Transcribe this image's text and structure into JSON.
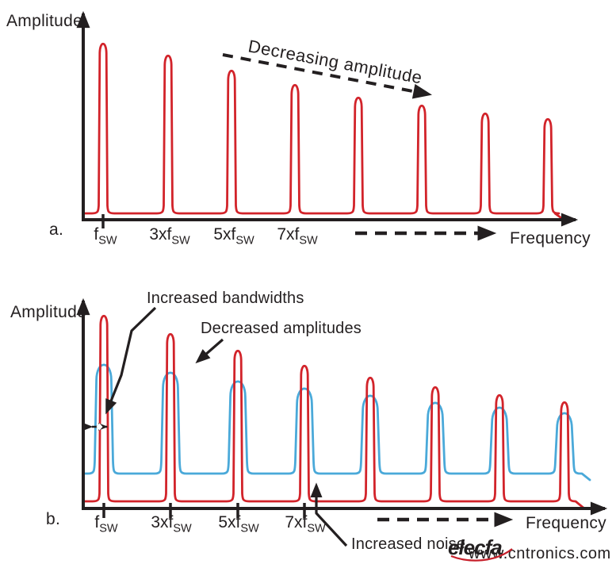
{
  "colors": {
    "red": "#d2232a",
    "blue": "#4aa9d9",
    "ink": "#231f20",
    "watermark_logo_red": "#c7202b",
    "watermark_site_gray": "#b7c3b8"
  },
  "chart_a": {
    "index_label": "a.",
    "y_axis_label": "Amplitude",
    "x_axis_label": "Frequency",
    "annotation_decreasing": "Decreasing amplitude",
    "harmonics": [
      {
        "main": "f",
        "sub": "SW"
      },
      {
        "main": "3xf",
        "sub": "SW"
      },
      {
        "main": "5xf",
        "sub": "SW"
      },
      {
        "main": "7xf",
        "sub": "SW"
      }
    ]
  },
  "chart_b": {
    "index_label": "b.",
    "y_axis_label": "Amplitude",
    "x_axis_label": "Frequency",
    "annotation_bandwidths": "Increased bandwidths",
    "annotation_amplitudes": "Decreased amplitudes",
    "annotation_noise": "Increased noise",
    "harmonics": [
      {
        "main": "f",
        "sub": "SW"
      },
      {
        "main": "3xf",
        "sub": "SW"
      },
      {
        "main": "5xf",
        "sub": "SW"
      },
      {
        "main": "7xf",
        "sub": "SW"
      }
    ]
  },
  "watermarks": {
    "logo_text": "elecfa",
    "site_text": "www.cntronics.com"
  },
  "chart_data": {
    "type": "line",
    "charts": [
      {
        "id": "a",
        "x_tick_labels": [
          "fSW",
          "3xfSW",
          "5xfSW",
          "7xfSW"
        ],
        "xlabel": "Frequency",
        "ylabel": "Amplitude",
        "ticks": {
          "group_id": "ticks-a",
          "xs": [
            130
          ],
          "y1": 270,
          "y2": 288
        },
        "labels": {
          "group_id": "labels-a",
          "centers": [
            133,
            214,
            295,
            375
          ],
          "y": 302,
          "source": "chart_a"
        },
        "series": [
          {
            "path_id": "curve-a-red",
            "color_key": "red",
            "peaks_x": [
              130,
              212,
              292,
              372,
              452,
              532,
              612,
              691
            ],
            "tops_y": [
              55,
              70,
              89,
              107,
              123,
              133,
              143,
              150
            ],
            "baseline_y": 269,
            "half_width": 7,
            "top_half_width": 3.8,
            "base_r": 10,
            "start_x": 107,
            "end_x": 700,
            "hook": [
              11,
              8
            ]
          }
        ]
      },
      {
        "id": "b",
        "x_tick_labels": [
          "fSW",
          "3xfSW",
          "5xfSW",
          "7xfSW"
        ],
        "xlabel": "Frequency",
        "ylabel": "Amplitude",
        "ticks": {
          "group_id": "ticks-b",
          "xs": [
            131,
            215,
            300,
            384
          ],
          "y1": 634,
          "y2": 653
        },
        "labels": {
          "group_id": "labels-b",
          "centers": [
            134,
            216,
            301,
            385
          ],
          "y": 665,
          "source": "chart_b"
        },
        "series": [
          {
            "path_id": "curve-b-blue",
            "color_key": "blue",
            "peaks_x": [
              131,
              215,
              300,
              384,
              467,
              549,
              630,
              712
            ],
            "tops_y": [
              457,
              467,
              478,
              487,
              496,
              505,
              511,
              518
            ],
            "baseline_y": 597,
            "half_width": 13,
            "top_half_width": 9,
            "base_r": 16,
            "start_x": 107,
            "end_x": 734,
            "hook": [
              10,
              8
            ]
          },
          {
            "path_id": "curve-b-red",
            "color_key": "red",
            "peaks_x": [
              131,
              215,
              300,
              384,
              467,
              549,
              630,
              712
            ],
            "tops_y": [
              398,
              421,
              442,
              461,
              476,
              488,
              498,
              507
            ],
            "baseline_y": 632,
            "half_width": 7,
            "top_half_width": 3.8,
            "base_r": 10,
            "start_x": 107,
            "end_x": 726,
            "hook": [
              11,
              9
            ]
          }
        ]
      }
    ]
  }
}
